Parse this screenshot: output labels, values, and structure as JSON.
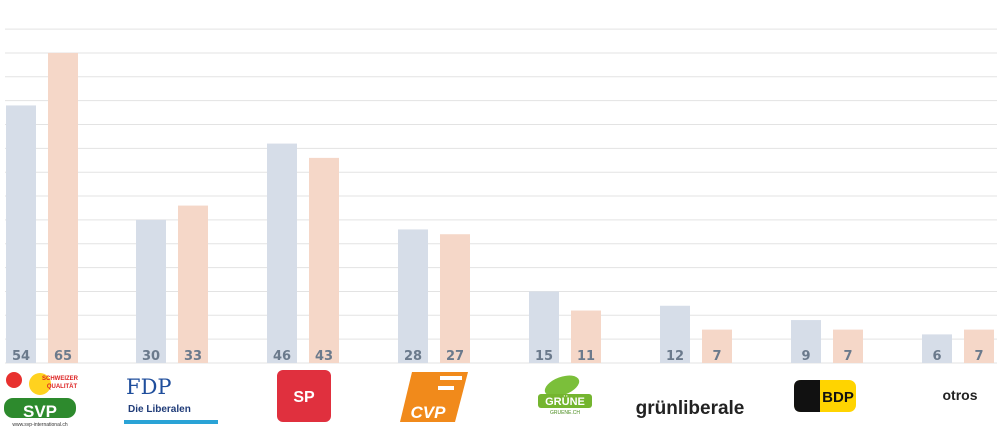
{
  "chart_data": {
    "type": "bar",
    "categories": [
      "SVP",
      "FDP",
      "SP",
      "CVP",
      "GRÜNE",
      "grünliberale",
      "BDP",
      "otros"
    ],
    "series": [
      {
        "values": [
          54,
          30,
          46,
          28,
          15,
          12,
          9,
          6
        ],
        "color": "#d6dde8"
      },
      {
        "values": [
          65,
          33,
          43,
          27,
          11,
          7,
          7,
          7
        ],
        "color": "#f5d7c8"
      }
    ],
    "ylim": [
      0,
      70
    ],
    "grid": true,
    "gridColor": "#e3e3e3"
  },
  "logos": {
    "svp": {
      "name": "SVP",
      "tag1": "SCHWEIZER",
      "tag2": "QUALITÄT",
      "url": "www.svp-international.ch"
    },
    "fdp": {
      "name": "FDP",
      "sub": "Die Liberalen"
    },
    "sp": {
      "name": "SP"
    },
    "cvp": {
      "name": "CVP"
    },
    "gruene": {
      "name": "GRÜNE",
      "sub": "GRUENE.CH"
    },
    "glp": {
      "name": "grünliberale"
    },
    "bdp": {
      "name": "BDP"
    },
    "otros": {
      "name": "otros"
    }
  }
}
